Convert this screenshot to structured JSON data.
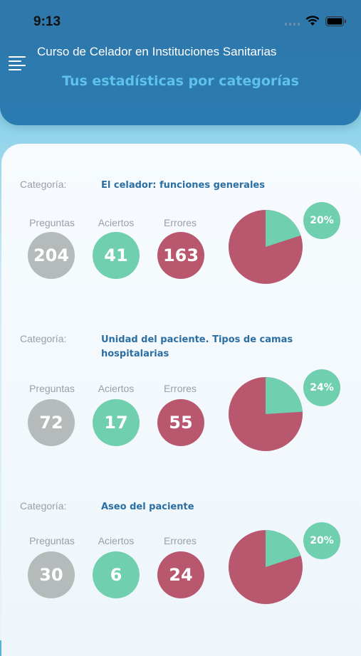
{
  "status_bar": {
    "time": "9:13"
  },
  "header": {
    "app_title": "Curso de Celador en Instituciones Sanitarias",
    "screen_title": "Tus estadísticas por categorías"
  },
  "labels": {
    "category": "Categoría:",
    "questions": "Preguntas",
    "correct": "Aciertos",
    "errors": "Errores"
  },
  "colors": {
    "header": "#2a7bb2",
    "accent_title": "#5ec2ea",
    "correct": "#6fcfae",
    "errors": "#b9576f",
    "questions": "#b5babb"
  },
  "categories": [
    {
      "name": "El celador: funciones generales",
      "questions": "204",
      "correct": "41",
      "errors": "163",
      "percent": "20%",
      "correct_fraction": 0.2
    },
    {
      "name": "Unidad del paciente. Tipos de camas hospitalarias",
      "questions": "72",
      "correct": "17",
      "errors": "55",
      "percent": "24%",
      "correct_fraction": 0.24
    },
    {
      "name": "Aseo del paciente",
      "questions": "30",
      "correct": "6",
      "errors": "24",
      "percent": "20%",
      "correct_fraction": 0.2
    }
  ]
}
